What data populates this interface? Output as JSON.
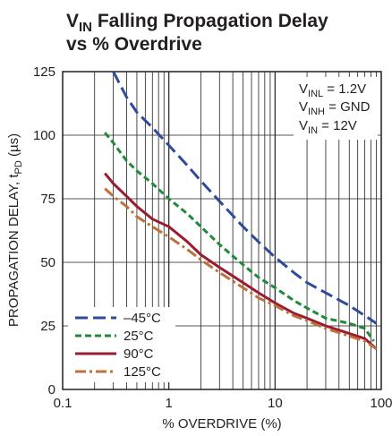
{
  "chart_data": {
    "type": "line",
    "title": {
      "line1": {
        "main": "V",
        "sub": "IN",
        "rest": " Falling Propagation Delay"
      },
      "line2": "vs % Overdrive"
    },
    "xlabel": "% OVERDRIVE (%)",
    "ylabel": {
      "main": "PROPAGATION DELAY, t",
      "sub": "PD",
      "rest": " (µs)"
    },
    "x_scale": "log",
    "xlim": [
      0.1,
      100
    ],
    "ylim": [
      0,
      125
    ],
    "x_ticks": [
      {
        "value": 0.1,
        "label": "0.1"
      },
      {
        "value": 1,
        "label": "1"
      },
      {
        "value": 10,
        "label": "10"
      },
      {
        "value": 100,
        "label": "100"
      }
    ],
    "y_ticks": [
      {
        "value": 0,
        "label": "0"
      },
      {
        "value": 25,
        "label": "25"
      },
      {
        "value": 50,
        "label": "50"
      },
      {
        "value": 75,
        "label": "75"
      },
      {
        "value": 100,
        "label": "100"
      },
      {
        "value": 125,
        "label": "125"
      }
    ],
    "grid": true,
    "annotations": [
      {
        "main": "V",
        "sub": "INL",
        "rest": " = 1.2V"
      },
      {
        "main": "V",
        "sub": "INH",
        "rest": " = GND"
      },
      {
        "main": "V",
        "sub": "IN",
        "rest": " = 12V"
      }
    ],
    "legend_position": "bottom-left",
    "series": [
      {
        "name": "–45°C",
        "color": "#2e4b9b",
        "dash": "long-dash",
        "x": [
          0.3,
          0.4,
          0.5,
          0.7,
          1,
          1.5,
          2,
          3,
          5,
          7,
          10,
          15,
          20,
          30,
          50,
          70,
          90
        ],
        "y": [
          125,
          115,
          109,
          103,
          96,
          88,
          82,
          74,
          64,
          58,
          52,
          46,
          42,
          38,
          33,
          29,
          26
        ]
      },
      {
        "name": "25°C",
        "color": "#1f8a3a",
        "dash": "short-dash",
        "x": [
          0.25,
          0.3,
          0.4,
          0.5,
          0.7,
          1,
          1.5,
          2,
          3,
          5,
          7,
          10,
          15,
          20,
          30,
          50,
          70,
          85
        ],
        "y": [
          101,
          97,
          90,
          86,
          81,
          75,
          69,
          64,
          57,
          49,
          44,
          40,
          35,
          32,
          28,
          26,
          24,
          19
        ]
      },
      {
        "name": "90°C",
        "color": "#9b1b30",
        "dash": "solid",
        "x": [
          0.25,
          0.3,
          0.4,
          0.5,
          0.7,
          1,
          1.5,
          2,
          3,
          5,
          7,
          10,
          15,
          20,
          30,
          50,
          70,
          90
        ],
        "y": [
          85,
          81,
          76,
          72,
          67,
          64,
          58,
          53,
          48,
          42,
          38,
          34,
          30,
          28,
          25,
          22,
          20,
          16
        ]
      },
      {
        "name": "125°C",
        "color": "#c0703a",
        "dash": "dash-dot",
        "x": [
          0.25,
          0.3,
          0.4,
          0.5,
          0.7,
          1,
          1.5,
          2,
          3,
          5,
          7,
          10,
          15,
          20,
          30,
          50,
          70,
          90
        ],
        "y": [
          79,
          76,
          72,
          68,
          64,
          60,
          55,
          51,
          46,
          40,
          36,
          33,
          29,
          27,
          24,
          21,
          19,
          16
        ]
      }
    ]
  }
}
